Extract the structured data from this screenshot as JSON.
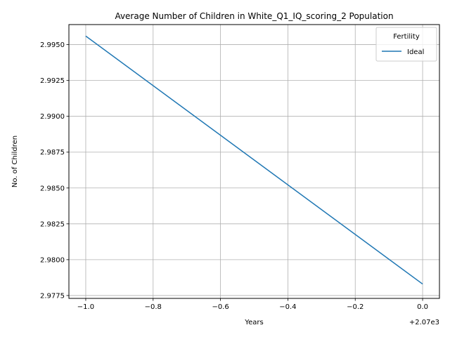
{
  "chart_data": {
    "type": "line",
    "title": "Average Number of Children in White_Q1_IQ_scoring_2 Population",
    "xlabel": "Years",
    "ylabel": "No. of Children",
    "x_offset_label": "+2.07e3",
    "xlim": [
      -1.05,
      0.05
    ],
    "ylim": [
      2.9773,
      2.9964
    ],
    "xticks": [
      "−1.0",
      "−0.8",
      "−0.6",
      "−0.4",
      "−0.2",
      "0.0"
    ],
    "xtick_values": [
      -1.0,
      -0.8,
      -0.6,
      -0.4,
      -0.2,
      0.0
    ],
    "yticks": [
      "2.9775",
      "2.9800",
      "2.9825",
      "2.9850",
      "2.9875",
      "2.9900",
      "2.9925",
      "2.9950"
    ],
    "ytick_values": [
      2.9775,
      2.98,
      2.9825,
      2.985,
      2.9875,
      2.99,
      2.9925,
      2.995
    ],
    "grid": true,
    "legend": {
      "title": "Fertility",
      "placement": "top-right"
    },
    "series": [
      {
        "name": "Ideal",
        "color": "#1f77b4",
        "x": [
          -1.0,
          0.0
        ],
        "y": [
          2.9956,
          2.9783
        ]
      }
    ]
  }
}
